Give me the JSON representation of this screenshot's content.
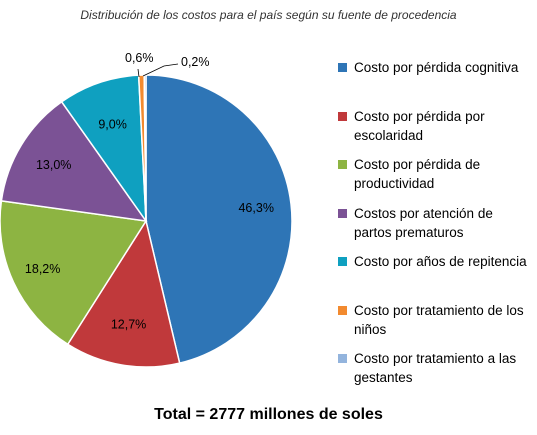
{
  "chart_data": {
    "type": "pie",
    "title": "Distribución de los costos para el país según su fuente de procedencia",
    "footer": "Total = 2777 millones de soles",
    "slices": [
      {
        "label": "Costo por pérdida cognitiva",
        "value": 46.3,
        "display": "46,3%",
        "color": "#2E75B6"
      },
      {
        "label": "Costo por pérdida por escolaridad",
        "value": 12.7,
        "display": "12,7%",
        "color": "#C0393B"
      },
      {
        "label": "Costo por pérdida de productividad",
        "value": 18.2,
        "display": "18,2%",
        "color": "#8DB442"
      },
      {
        "label": "Costos por atención de partos prematuros",
        "value": 13.0,
        "display": "13,0%",
        "color": "#7B5295"
      },
      {
        "label": "Costo por años de repitencia",
        "value": 9.0,
        "display": "9,0%",
        "color": "#0FA0C0"
      },
      {
        "label": "Costo por tratamiento de los niños",
        "value": 0.6,
        "display": "0,6%",
        "color": "#F28A2F"
      },
      {
        "label": "Costo por tratamiento a las gestantes",
        "value": 0.2,
        "display": "0,2%",
        "color": "#93B4DD"
      }
    ],
    "legend_position": "right"
  }
}
